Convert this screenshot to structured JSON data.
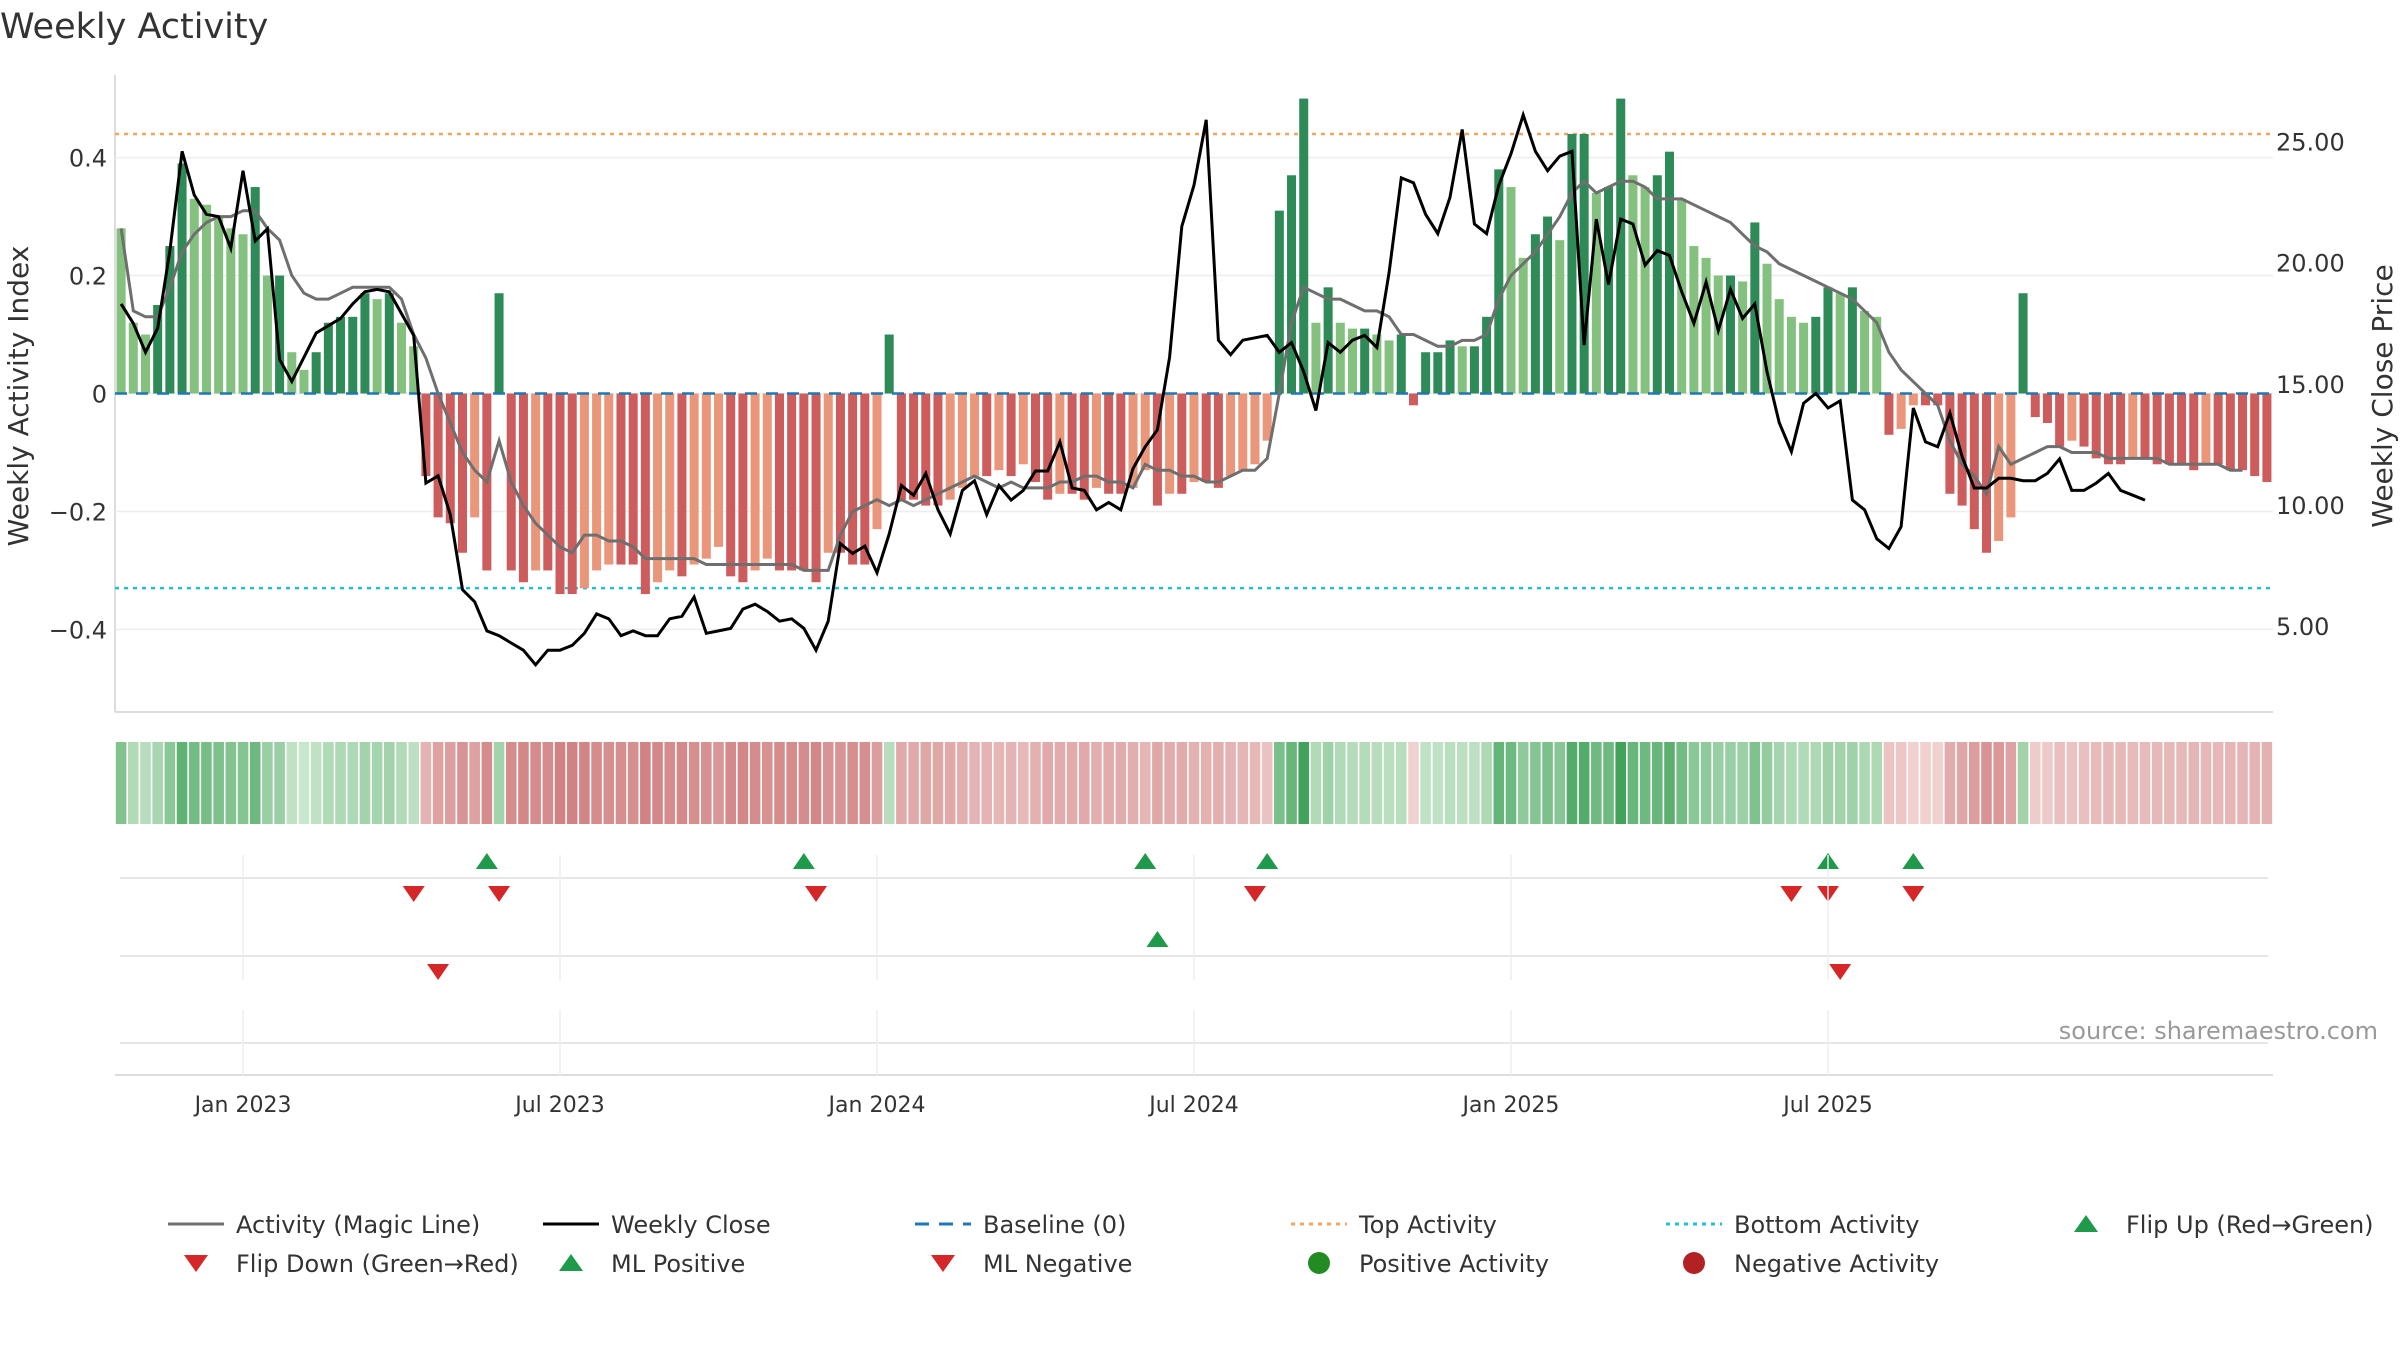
{
  "title": "Weekly Activity",
  "y_left_label": "Weekly Activity Index",
  "y_right_label": "Weekly Close Price",
  "source_note": "source: sharemaestro.com",
  "colors": {
    "pos_strong": "#2e8b57",
    "pos_light": "#85c17e",
    "neg_strong": "#cd5c5c",
    "neg_light": "#e9967a",
    "magic_line": "#6f6f6f",
    "close_line": "#000000",
    "baseline": "#1f77b4",
    "top_line": "#f4a460",
    "bottom_line": "#20c0d0",
    "flip_up": "#1e9a4a",
    "flip_down": "#d62728"
  },
  "chart_data": {
    "type": "bar",
    "title": "Weekly Activity",
    "ylabel": "Weekly Activity Index",
    "y2label": "Weekly Close Price",
    "ylim": [
      -0.54,
      0.54
    ],
    "y2lim": [
      1.45,
      27.75
    ],
    "yticks": [
      0.4,
      0.2,
      0,
      -0.2,
      -0.4
    ],
    "ytick_labels": [
      "0.4",
      "0.2",
      "0",
      "−0.2",
      "−0.4"
    ],
    "y2ticks": [
      25,
      20,
      15,
      10,
      5
    ],
    "y2tick_labels": [
      "25.00",
      "20.00",
      "15.00",
      "10.00",
      "5.00"
    ],
    "x_tick_indices": [
      10,
      36,
      62,
      88,
      114,
      140
    ],
    "x_tick_labels": [
      "Jan 2023",
      "Jul 2023",
      "Jan 2024",
      "Jul 2024",
      "Jan 2025",
      "Jul 2025"
    ],
    "top_activity": 0.44,
    "bottom_activity": -0.33,
    "series": [
      {
        "name": "Weekly Activity Index",
        "values": [
          0.28,
          0.12,
          0.1,
          0.15,
          0.25,
          0.39,
          0.33,
          0.32,
          0.3,
          0.28,
          0.27,
          0.35,
          0.2,
          0.2,
          0.07,
          0.04,
          0.07,
          0.12,
          0.13,
          0.13,
          0.17,
          0.16,
          0.17,
          0.12,
          0.08,
          -0.14,
          -0.21,
          -0.22,
          -0.27,
          -0.21,
          -0.3,
          0.17,
          -0.3,
          -0.32,
          -0.3,
          -0.3,
          -0.34,
          -0.34,
          -0.33,
          -0.3,
          -0.29,
          -0.29,
          -0.29,
          -0.34,
          -0.32,
          -0.3,
          -0.31,
          -0.29,
          -0.28,
          -0.26,
          -0.31,
          -0.32,
          -0.3,
          -0.28,
          -0.3,
          -0.3,
          -0.3,
          -0.32,
          -0.27,
          -0.27,
          -0.29,
          -0.29,
          -0.23,
          0.1,
          -0.18,
          -0.18,
          -0.19,
          -0.19,
          -0.18,
          -0.16,
          -0.14,
          -0.14,
          -0.13,
          -0.14,
          -0.12,
          -0.15,
          -0.18,
          -0.17,
          -0.17,
          -0.18,
          -0.16,
          -0.17,
          -0.17,
          -0.16,
          -0.13,
          -0.19,
          -0.17,
          -0.17,
          -0.15,
          -0.15,
          -0.16,
          -0.14,
          -0.13,
          -0.12,
          -0.08,
          0.31,
          0.37,
          0.5,
          0.12,
          0.18,
          0.12,
          0.11,
          0.11,
          0.1,
          0.09,
          0.1,
          -0.02,
          0.07,
          0.07,
          0.09,
          0.08,
          0.08,
          0.13,
          0.38,
          0.35,
          0.23,
          0.27,
          0.3,
          0.26,
          0.44,
          0.44,
          0.34,
          0.35,
          0.5,
          0.37,
          0.35,
          0.37,
          0.41,
          0.33,
          0.25,
          0.23,
          0.2,
          0.2,
          0.19,
          0.29,
          0.22,
          0.16,
          0.13,
          0.12,
          0.13,
          0.18,
          0.17,
          0.18,
          0.14,
          0.13,
          -0.07,
          -0.06,
          -0.02,
          -0.02,
          -0.02,
          -0.17,
          -0.19,
          -0.23,
          -0.27,
          -0.25,
          -0.21,
          0.17,
          -0.04,
          -0.05,
          -0.09,
          -0.08,
          -0.09,
          -0.11,
          -0.12,
          -0.12,
          -0.11,
          -0.11,
          -0.12,
          -0.12,
          -0.12,
          -0.13,
          -0.12,
          -0.12,
          -0.13,
          -0.13,
          -0.14,
          -0.15
        ]
      },
      {
        "name": "Weekly Close",
        "values": [
          18.3,
          17.5,
          16.3,
          17.3,
          20.5,
          24.6,
          22.8,
          22.0,
          21.9,
          20.6,
          23.8,
          20.9,
          21.4,
          16.0,
          15.1,
          16.1,
          17.1,
          17.4,
          17.7,
          18.3,
          18.8,
          18.9,
          18.8,
          17.9,
          17.0,
          10.9,
          11.2,
          9.6,
          6.5,
          6.0,
          4.8,
          4.6,
          4.3,
          4.0,
          3.4,
          4.0,
          4.0,
          4.2,
          4.7,
          5.5,
          5.3,
          4.6,
          4.8,
          4.6,
          4.6,
          5.3,
          5.4,
          6.2,
          4.7,
          4.8,
          4.9,
          5.7,
          5.9,
          5.6,
          5.2,
          5.3,
          4.9,
          4.0,
          5.2,
          8.4,
          8.0,
          8.3,
          7.2,
          8.8,
          10.8,
          10.4,
          11.3,
          9.8,
          8.8,
          10.6,
          11.0,
          9.6,
          10.8,
          10.2,
          10.6,
          11.4,
          11.4,
          12.6,
          10.7,
          10.6,
          9.8,
          10.1,
          9.8,
          11.5,
          12.4,
          13.1,
          16.1,
          21.5,
          23.2,
          25.9,
          16.8,
          16.2,
          16.8,
          16.9,
          17.0,
          16.3,
          16.7,
          15.5,
          13.9,
          16.7,
          16.3,
          16.8,
          17.0,
          16.5,
          19.6,
          23.5,
          23.3,
          22.0,
          21.2,
          22.7,
          25.5,
          21.6,
          21.2,
          23.2,
          24.5,
          26.1,
          24.6,
          23.8,
          24.4,
          24.6,
          16.6,
          21.8,
          19.1,
          21.8,
          21.6,
          19.9,
          20.5,
          20.3,
          18.8,
          17.5,
          19.2,
          17.2,
          18.9,
          17.7,
          18.3,
          15.5,
          13.4,
          12.2,
          14.2,
          14.6,
          14.0,
          14.3,
          10.2,
          9.8,
          8.6,
          8.2,
          9.1,
          14.0,
          12.6,
          12.4,
          13.8,
          12.0,
          10.7,
          10.7,
          11.1,
          11.1,
          11.0,
          11.0,
          11.3,
          11.9,
          10.6,
          10.6,
          10.9,
          11.3,
          10.6,
          10.4,
          10.2
        ]
      },
      {
        "name": "Activity (Magic Line)",
        "values": [
          0.28,
          0.14,
          0.13,
          0.13,
          0.18,
          0.24,
          0.27,
          0.29,
          0.3,
          0.3,
          0.31,
          0.31,
          0.28,
          0.26,
          0.2,
          0.17,
          0.16,
          0.16,
          0.17,
          0.18,
          0.18,
          0.18,
          0.18,
          0.16,
          0.1,
          0.06,
          0.0,
          -0.05,
          -0.1,
          -0.13,
          -0.15,
          -0.08,
          -0.15,
          -0.19,
          -0.22,
          -0.24,
          -0.26,
          -0.27,
          -0.24,
          -0.24,
          -0.25,
          -0.25,
          -0.26,
          -0.28,
          -0.28,
          -0.28,
          -0.28,
          -0.28,
          -0.29,
          -0.29,
          -0.29,
          -0.29,
          -0.29,
          -0.29,
          -0.29,
          -0.29,
          -0.3,
          -0.3,
          -0.3,
          -0.24,
          -0.2,
          -0.19,
          -0.18,
          -0.19,
          -0.18,
          -0.19,
          -0.18,
          -0.17,
          -0.16,
          -0.15,
          -0.14,
          -0.15,
          -0.16,
          -0.15,
          -0.16,
          -0.16,
          -0.16,
          -0.15,
          -0.15,
          -0.14,
          -0.14,
          -0.15,
          -0.15,
          -0.16,
          -0.12,
          -0.13,
          -0.13,
          -0.14,
          -0.14,
          -0.15,
          -0.15,
          -0.14,
          -0.13,
          -0.13,
          -0.11,
          0.0,
          0.12,
          0.18,
          0.17,
          0.16,
          0.16,
          0.15,
          0.14,
          0.14,
          0.13,
          0.1,
          0.1,
          0.09,
          0.08,
          0.08,
          0.09,
          0.09,
          0.1,
          0.16,
          0.2,
          0.22,
          0.24,
          0.27,
          0.3,
          0.34,
          0.36,
          0.34,
          0.35,
          0.36,
          0.36,
          0.35,
          0.33,
          0.33,
          0.33,
          0.32,
          0.31,
          0.3,
          0.29,
          0.27,
          0.25,
          0.24,
          0.22,
          0.21,
          0.2,
          0.19,
          0.18,
          0.17,
          0.16,
          0.14,
          0.12,
          0.07,
          0.04,
          0.02,
          0.0,
          -0.02,
          -0.08,
          -0.12,
          -0.14,
          -0.17,
          -0.09,
          -0.12,
          -0.11,
          -0.1,
          -0.09,
          -0.09,
          -0.1,
          -0.1,
          -0.1,
          -0.11,
          -0.11,
          -0.11,
          -0.11,
          -0.11,
          -0.12,
          -0.12,
          -0.12,
          -0.12,
          -0.12,
          -0.13,
          -0.13
        ]
      }
    ],
    "baseline": 0,
    "heat_strip": "weekly activity strength",
    "markers": {
      "flip_up": [
        30,
        56,
        84,
        94,
        140,
        147
      ],
      "flip_down": [
        24,
        31,
        57,
        93,
        137,
        140,
        147
      ],
      "ml_positive": [
        85
      ],
      "ml_negative": [
        26,
        141
      ]
    }
  },
  "legend": {
    "items": [
      {
        "label": "Activity (Magic Line)",
        "kind": "line",
        "color": "#6f6f6f"
      },
      {
        "label": "Weekly Close",
        "kind": "line",
        "color": "#000000"
      },
      {
        "label": "Baseline (0)",
        "kind": "dash",
        "color": "#1f77b4"
      },
      {
        "label": "Top Activity",
        "kind": "dot",
        "color": "#f4a460"
      },
      {
        "label": "Bottom Activity",
        "kind": "dot",
        "color": "#20c0d0"
      },
      {
        "label": "Flip Up (Red→Green)",
        "kind": "tri-up",
        "color": "#1e9a4a"
      },
      {
        "label": "Flip Down (Green→Red)",
        "kind": "tri-down",
        "color": "#d62728"
      },
      {
        "label": "ML Positive",
        "kind": "tri-up",
        "color": "#1e9a4a"
      },
      {
        "label": "ML Negative",
        "kind": "tri-down",
        "color": "#d62728"
      },
      {
        "label": "Positive Activity",
        "kind": "circle",
        "color": "#228b22"
      },
      {
        "label": "Negative Activity",
        "kind": "circle",
        "color": "#b22222"
      }
    ]
  }
}
